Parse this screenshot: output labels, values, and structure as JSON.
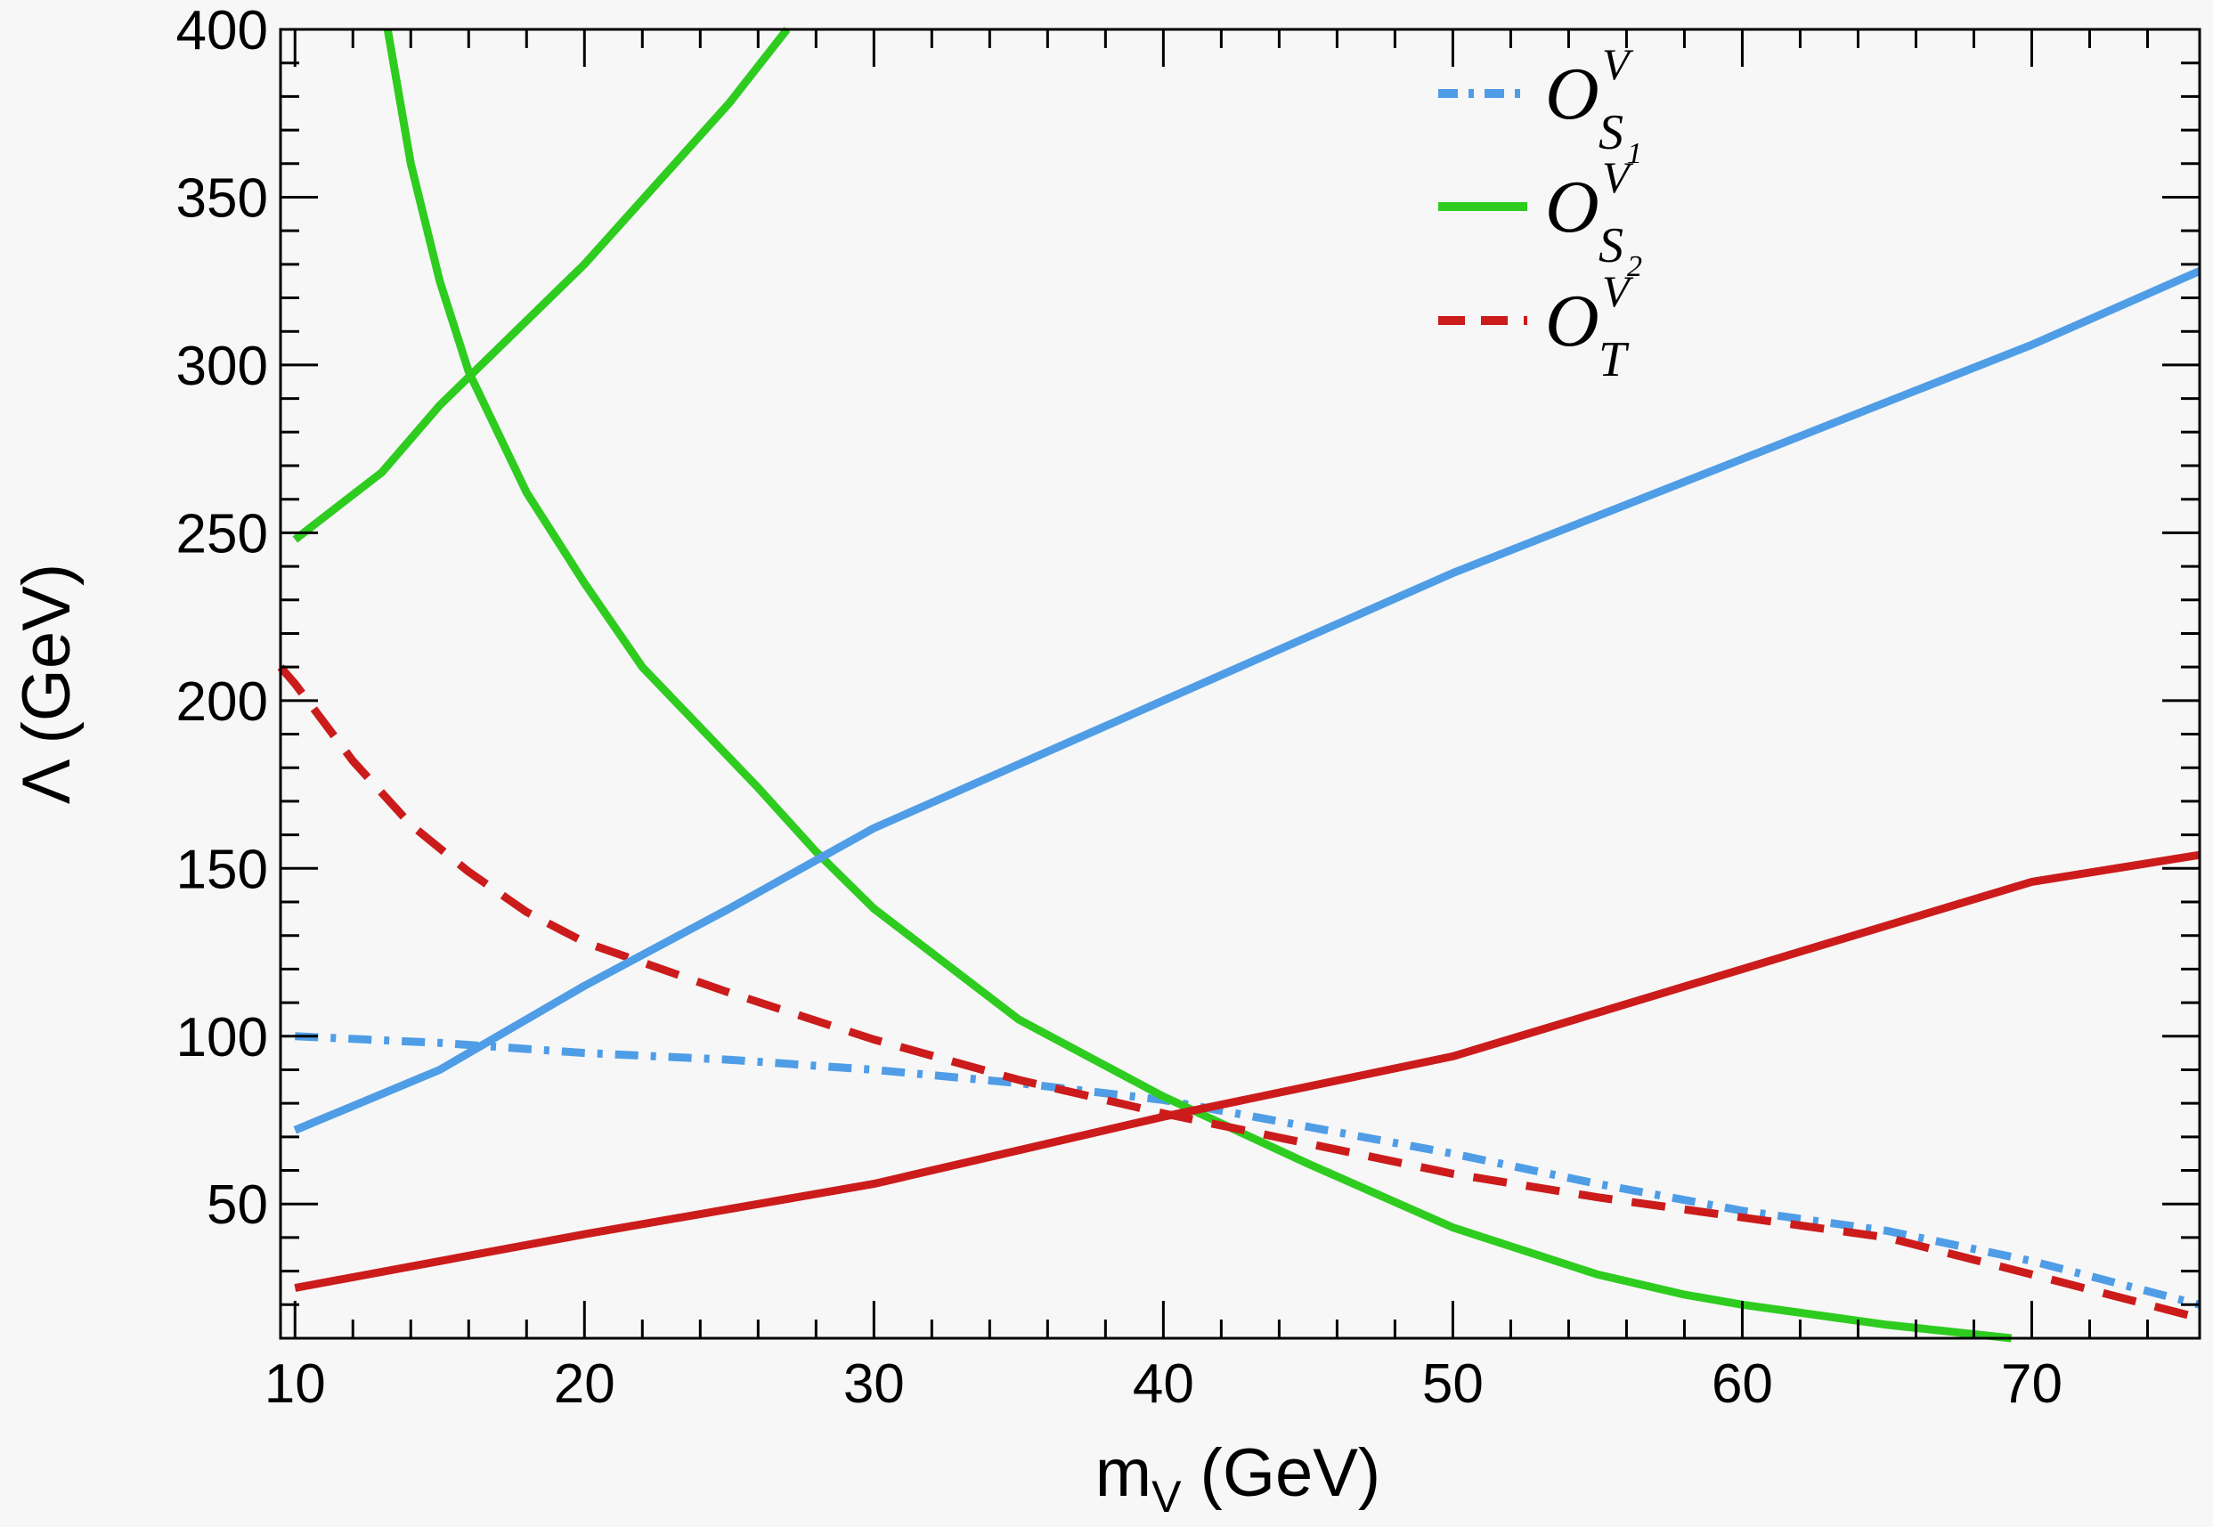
{
  "chart_data": {
    "type": "line",
    "xlabel_main": "m",
    "xlabel_sub": "V",
    "xlabel_unit": " (GeV)",
    "ylabel": "Λ (GeV)",
    "xlim": [
      9.5,
      75.8
    ],
    "ylim": [
      10,
      400
    ],
    "x_ticks": [
      10,
      20,
      30,
      40,
      50,
      60,
      70
    ],
    "y_ticks": [
      50,
      100,
      150,
      200,
      250,
      300,
      350,
      400
    ],
    "grid": false,
    "legend_position": "top-right",
    "legend": [
      {
        "base": "O",
        "sup": "V",
        "sub": "S",
        "subsub": "1",
        "color": "#4f9de6",
        "style": "dashdot"
      },
      {
        "base": "O",
        "sup": "V",
        "sub": "S",
        "subsub": "2",
        "color": "#2ecc1f",
        "style": "solid"
      },
      {
        "base": "O",
        "sup": "V",
        "sub": "T",
        "subsub": "",
        "color": "#cc1b1b",
        "style": "dashed"
      }
    ],
    "series": [
      {
        "color": "#4f9de6",
        "style": "dashdot",
        "points": [
          [
            10,
            100
          ],
          [
            15,
            98
          ],
          [
            20,
            95
          ],
          [
            25,
            93
          ],
          [
            30,
            90
          ],
          [
            35,
            86
          ],
          [
            40,
            81
          ],
          [
            45,
            73
          ],
          [
            50,
            65
          ],
          [
            55,
            56
          ],
          [
            60,
            48
          ],
          [
            65,
            42
          ],
          [
            70,
            33
          ],
          [
            75.8,
            20
          ]
        ]
      },
      {
        "color": "#2ecc1f",
        "style": "solid",
        "points": [
          [
            13.2,
            400
          ],
          [
            14,
            360
          ],
          [
            15,
            325
          ],
          [
            16,
            298
          ],
          [
            17,
            280
          ],
          [
            18,
            262
          ],
          [
            20,
            235
          ],
          [
            22,
            210
          ],
          [
            24,
            192
          ],
          [
            26,
            174
          ],
          [
            28,
            155
          ],
          [
            30,
            138
          ],
          [
            35,
            105
          ],
          [
            40,
            82
          ],
          [
            45,
            62
          ],
          [
            50,
            43
          ],
          [
            55,
            29
          ],
          [
            58,
            23
          ],
          [
            60,
            20
          ],
          [
            65,
            14
          ],
          [
            69.3,
            10
          ]
        ]
      },
      {
        "color": "#cc1b1b",
        "style": "dashed",
        "points": [
          [
            9.5,
            210
          ],
          [
            10,
            205
          ],
          [
            12,
            182
          ],
          [
            14,
            163
          ],
          [
            16,
            149
          ],
          [
            18,
            137
          ],
          [
            20,
            128
          ],
          [
            25,
            113
          ],
          [
            30,
            99
          ],
          [
            35,
            87
          ],
          [
            40,
            77
          ],
          [
            45,
            68
          ],
          [
            50,
            59
          ],
          [
            55,
            52
          ],
          [
            60,
            46
          ],
          [
            65,
            40
          ],
          [
            70,
            29
          ],
          [
            75.8,
            16
          ]
        ]
      },
      {
        "color": "#2ecc1f",
        "style": "solid",
        "points": [
          [
            10,
            248
          ],
          [
            13,
            268
          ],
          [
            15,
            288
          ],
          [
            20,
            330
          ],
          [
            25,
            378
          ],
          [
            27,
            400
          ]
        ]
      },
      {
        "color": "#4f9de6",
        "style": "solid",
        "points": [
          [
            10,
            72
          ],
          [
            15,
            90
          ],
          [
            20,
            115
          ],
          [
            25,
            138
          ],
          [
            30,
            162
          ],
          [
            40,
            200
          ],
          [
            50,
            238
          ],
          [
            60,
            272
          ],
          [
            70,
            306
          ],
          [
            75.8,
            328
          ]
        ]
      },
      {
        "color": "#cc1b1b",
        "style": "solid",
        "points": [
          [
            10,
            25
          ],
          [
            20,
            41
          ],
          [
            30,
            56
          ],
          [
            40,
            76
          ],
          [
            50,
            94
          ],
          [
            55,
            107
          ],
          [
            60,
            120
          ],
          [
            65,
            133
          ],
          [
            70,
            146
          ],
          [
            75.8,
            154
          ]
        ]
      }
    ]
  }
}
